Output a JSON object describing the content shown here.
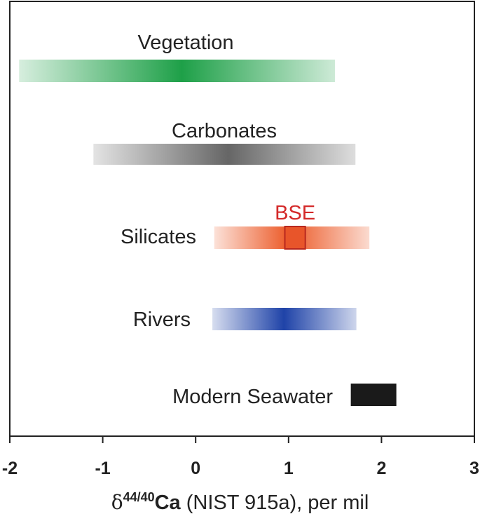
{
  "chart_data": {
    "type": "range_bar",
    "title": "",
    "xlabel": {
      "symbol": "δ",
      "superscript": "44/40",
      "element": "Ca",
      "rest": " (NIST 915a), per mil"
    },
    "xlim": [
      -2,
      3
    ],
    "xticks": [
      "-2",
      "-1",
      "0",
      "1",
      "2",
      "3"
    ],
    "grid": false,
    "series": [
      {
        "name": "Vegetation",
        "range": [
          -1.9,
          1.5
        ],
        "peak": -0.15,
        "color": "#1ea048",
        "style": "gradient"
      },
      {
        "name": "Carbonates",
        "range": [
          -1.1,
          1.72
        ],
        "peak": 0.35,
        "color": "#666666",
        "style": "gradient"
      },
      {
        "name": "Silicates",
        "range": [
          0.2,
          1.87
        ],
        "peak": 1.0,
        "color": "#ec5a28",
        "style": "gradient"
      },
      {
        "name": "Rivers",
        "range": [
          0.18,
          1.73
        ],
        "peak": 0.95,
        "color": "#1f43a8",
        "style": "gradient"
      },
      {
        "name": "Modern Seawater",
        "range": [
          1.67,
          2.16
        ],
        "color": "#1a1a1a",
        "style": "solid"
      }
    ],
    "annotations": [
      {
        "label": "BSE",
        "row": "Silicates",
        "range": [
          0.96,
          1.18
        ],
        "color": "#d42a2a"
      }
    ]
  }
}
